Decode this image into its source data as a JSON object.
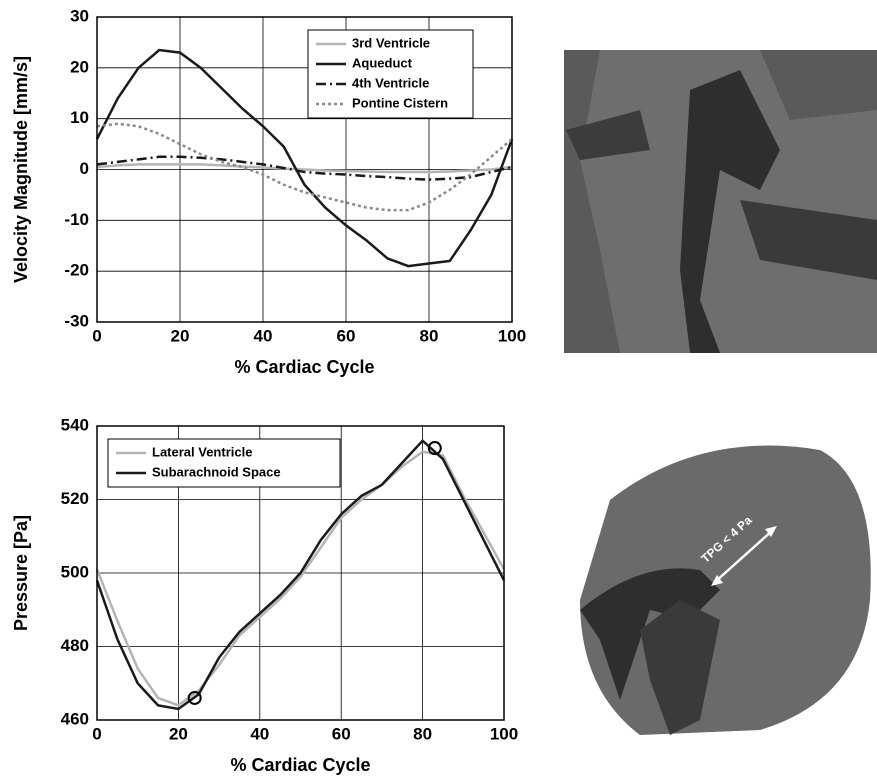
{
  "chart_data": [
    {
      "type": "line",
      "xlabel": "% Cardiac Cycle",
      "ylabel": "Velocity Magnitude [mm/s]",
      "xlim": [
        0,
        100
      ],
      "xticks": [
        0,
        20,
        40,
        60,
        80,
        100
      ],
      "ylim": [
        -30,
        30
      ],
      "yticks": [
        -30,
        -20,
        -10,
        0,
        10,
        20,
        30
      ],
      "grid": true,
      "legend": "upper right",
      "x": [
        0,
        5,
        10,
        15,
        20,
        25,
        30,
        35,
        40,
        45,
        50,
        55,
        60,
        65,
        70,
        75,
        80,
        85,
        90,
        95,
        100
      ],
      "series": [
        {
          "name": "3rd Ventricle",
          "color": "#b4b4b4",
          "style": "solid",
          "values": [
            0.5,
            0.8,
            1,
            1,
            1,
            1,
            0.8,
            0.6,
            0.4,
            0.2,
            0,
            -0.2,
            -0.3,
            -0.4,
            -0.5,
            -0.5,
            -0.5,
            -0.4,
            -0.2,
            0,
            0.5
          ]
        },
        {
          "name": "Aqueduct",
          "color": "#1a1a1a",
          "style": "solid",
          "values": [
            6,
            14,
            20,
            23.5,
            23,
            20,
            16,
            12,
            8.5,
            4.5,
            -3,
            -7.5,
            -11,
            -14,
            -17.5,
            -19,
            -18.5,
            -18,
            -12,
            -5,
            6
          ]
        },
        {
          "name": "4th Ventricle",
          "color": "#1a1a1a",
          "style": "dashdot",
          "values": [
            1,
            1.5,
            2,
            2.5,
            2.5,
            2.3,
            2,
            1.5,
            1,
            0.3,
            -0.5,
            -0.8,
            -1,
            -1.3,
            -1.5,
            -1.8,
            -2,
            -1.8,
            -1.5,
            -0.5,
            0.5
          ]
        },
        {
          "name": "Pontine Cistern",
          "color": "#8a8a8a",
          "style": "dotted",
          "values": [
            8.5,
            9,
            8.5,
            7,
            5,
            3,
            1.5,
            0.5,
            -1,
            -3,
            -4.5,
            -5.5,
            -6.5,
            -7.5,
            -8,
            -8,
            -6.5,
            -4,
            -1,
            2.5,
            6
          ]
        }
      ]
    },
    {
      "type": "line",
      "xlabel": "% Cardiac Cycle",
      "ylabel": "Pressure [Pa]",
      "xlim": [
        0,
        100
      ],
      "xticks": [
        0,
        20,
        40,
        60,
        80,
        100
      ],
      "ylim": [
        460,
        540
      ],
      "yticks": [
        460,
        480,
        500,
        520,
        540
      ],
      "grid": true,
      "legend": "upper left",
      "x": [
        0,
        5,
        10,
        15,
        20,
        25,
        30,
        35,
        40,
        45,
        50,
        55,
        60,
        65,
        70,
        75,
        80,
        85,
        90,
        95,
        100
      ],
      "series": [
        {
          "name": "Lateral Ventricle",
          "color": "#b4b4b4",
          "style": "solid",
          "values": [
            501,
            487,
            474,
            466,
            464,
            468,
            475,
            483,
            488,
            493,
            499,
            507,
            515,
            520,
            524,
            529,
            533,
            532,
            521,
            511,
            501
          ]
        },
        {
          "name": "Subarachnoid Space",
          "color": "#1a1a1a",
          "style": "solid",
          "values": [
            498,
            482,
            470,
            464,
            463,
            467,
            477,
            484,
            489,
            494,
            500,
            509,
            516,
            521,
            524,
            530,
            536,
            531,
            520,
            509,
            498
          ]
        }
      ],
      "markers": [
        {
          "x": 24,
          "y": 466
        },
        {
          "x": 83,
          "y": 534
        }
      ]
    }
  ],
  "image_annotation": "TPG < 4 Pa"
}
